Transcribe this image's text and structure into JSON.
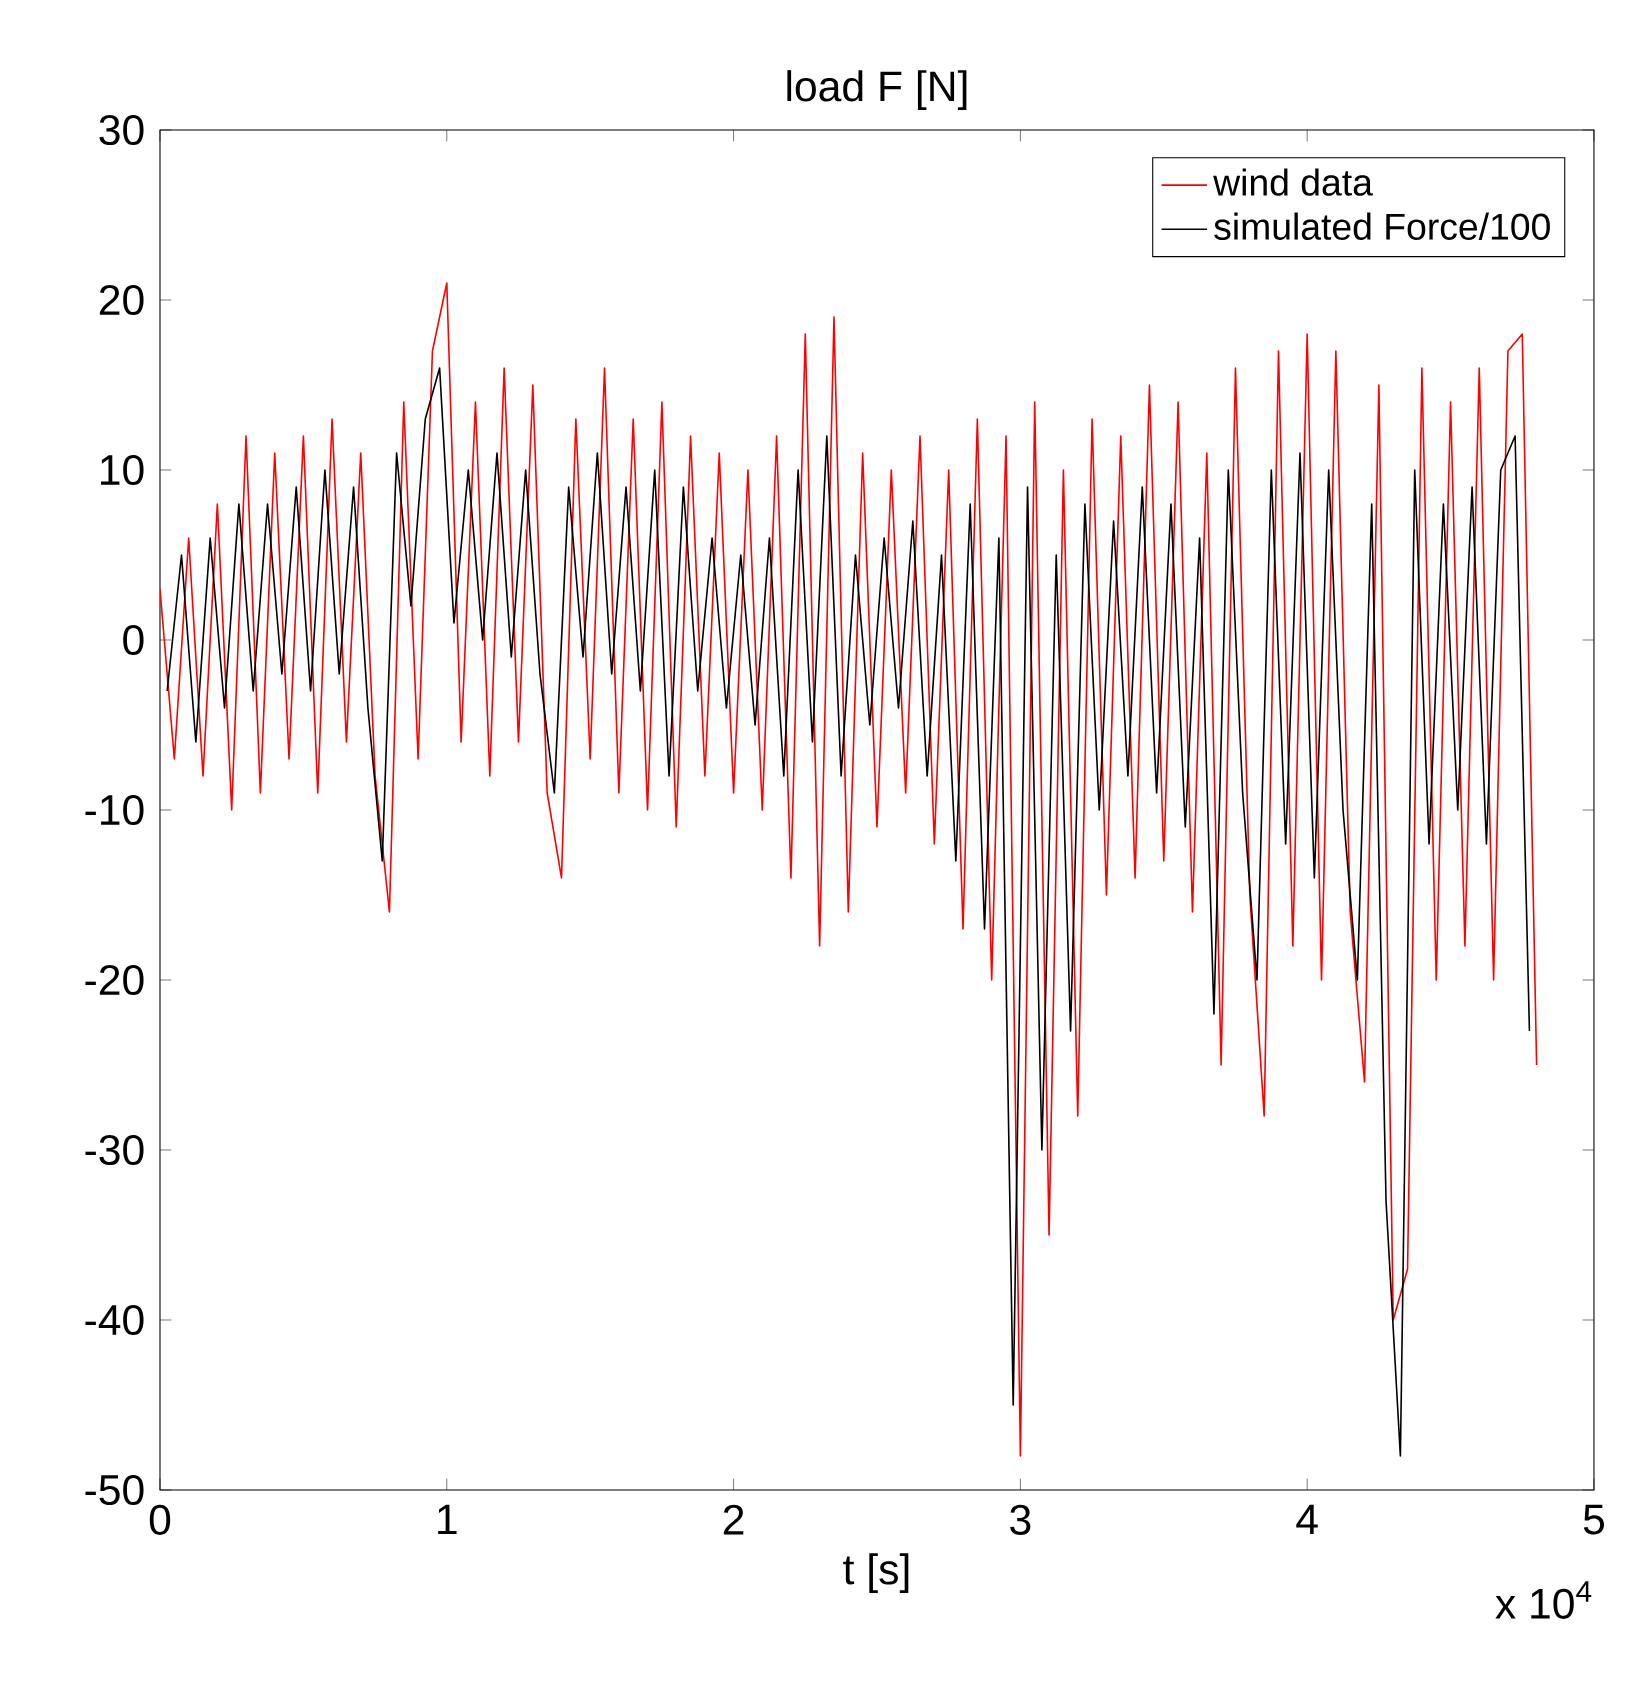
{
  "chart_data": {
    "type": "line",
    "title": "load F [N]",
    "xlabel": "t [s]",
    "annotations": [
      "x 10$^{4}$"
    ],
    "xlim": [
      0,
      5
    ],
    "ylim": [
      -50,
      30
    ],
    "xticks": [
      0,
      1,
      2,
      3,
      4,
      5
    ],
    "yticks": [
      -50,
      -40,
      -30,
      -20,
      -10,
      0,
      10,
      20,
      30
    ],
    "legend": "top right",
    "series": [
      {
        "name": "wind data",
        "color": "#ff0000",
        "x": [
          0,
          0.05,
          0.1,
          0.15,
          0.2,
          0.25,
          0.3,
          0.35,
          0.4,
          0.45,
          0.5,
          0.55,
          0.6,
          0.65,
          0.7,
          0.75,
          0.8,
          0.85,
          0.9,
          0.95,
          1,
          1.05,
          1.1,
          1.15,
          1.2,
          1.25,
          1.3,
          1.35,
          1.4,
          1.45,
          1.5,
          1.55,
          1.6,
          1.65,
          1.7,
          1.75,
          1.8,
          1.85,
          1.9,
          1.95,
          2,
          2.05,
          2.1,
          2.15,
          2.2,
          2.25,
          2.3,
          2.35,
          2.4,
          2.45,
          2.5,
          2.55,
          2.6,
          2.65,
          2.7,
          2.75,
          2.8,
          2.85,
          2.9,
          2.95,
          3,
          3.05,
          3.1,
          3.15,
          3.2,
          3.25,
          3.3,
          3.35,
          3.4,
          3.45,
          3.5,
          3.55,
          3.6,
          3.65,
          3.7,
          3.75,
          3.8,
          3.85,
          3.9,
          3.95,
          4,
          4.05,
          4.1,
          4.15,
          4.2,
          4.25,
          4.3,
          4.35,
          4.4,
          4.45,
          4.5,
          4.55,
          4.6,
          4.65,
          4.7,
          4.75,
          4.8
        ],
        "values": [
          3,
          -7,
          6,
          -8,
          8,
          -10,
          12,
          -9,
          11,
          -7,
          12,
          -9,
          13,
          -6,
          11,
          -8,
          -16,
          14,
          -7,
          17,
          21,
          -6,
          14,
          -8,
          16,
          -6,
          15,
          -9,
          -14,
          13,
          -7,
          16,
          -9,
          13,
          -10,
          14,
          -11,
          12,
          -8,
          11,
          -9,
          10,
          -10,
          12,
          -14,
          18,
          -18,
          19,
          -16,
          11,
          -11,
          10,
          -9,
          12,
          -12,
          10,
          -17,
          13,
          -20,
          12,
          -48,
          14,
          -35,
          10,
          -28,
          13,
          -15,
          12,
          -14,
          15,
          -13,
          14,
          -16,
          11,
          -25,
          16,
          -15,
          -28,
          17,
          -18,
          18,
          -20,
          17,
          -16,
          -26,
          15,
          -40,
          -37,
          16,
          -20,
          14,
          -18,
          16,
          -20,
          17,
          18,
          -25
        ]
      },
      {
        "name": "simulated Force/100",
        "color": "#000000",
        "x": [
          0.025,
          0.075,
          0.125,
          0.175,
          0.225,
          0.275,
          0.325,
          0.375,
          0.425,
          0.475,
          0.525,
          0.575,
          0.625,
          0.675,
          0.725,
          0.775,
          0.825,
          0.875,
          0.925,
          0.975,
          1.025,
          1.075,
          1.125,
          1.175,
          1.225,
          1.275,
          1.325,
          1.375,
          1.425,
          1.475,
          1.525,
          1.575,
          1.625,
          1.675,
          1.725,
          1.775,
          1.825,
          1.875,
          1.925,
          1.975,
          2.025,
          2.075,
          2.125,
          2.175,
          2.225,
          2.275,
          2.325,
          2.375,
          2.425,
          2.475,
          2.525,
          2.575,
          2.625,
          2.675,
          2.725,
          2.775,
          2.825,
          2.875,
          2.925,
          2.975,
          3.025,
          3.075,
          3.125,
          3.175,
          3.225,
          3.275,
          3.325,
          3.375,
          3.425,
          3.475,
          3.525,
          3.575,
          3.625,
          3.675,
          3.725,
          3.775,
          3.825,
          3.875,
          3.925,
          3.975,
          4.025,
          4.075,
          4.125,
          4.175,
          4.225,
          4.275,
          4.325,
          4.375,
          4.425,
          4.475,
          4.525,
          4.575,
          4.625,
          4.675,
          4.725,
          4.775
        ],
        "values": [
          -3,
          5,
          -6,
          6,
          -4,
          8,
          -3,
          8,
          -2,
          9,
          -3,
          10,
          -2,
          9,
          -4,
          -13,
          11,
          2,
          13,
          16,
          1,
          10,
          0,
          11,
          -1,
          10,
          -2,
          -9,
          9,
          -1,
          11,
          -2,
          9,
          -3,
          10,
          -8,
          9,
          -3,
          6,
          -4,
          5,
          -5,
          6,
          -8,
          10,
          -6,
          12,
          -8,
          5,
          -5,
          6,
          -4,
          7,
          -8,
          5,
          -13,
          8,
          -17,
          6,
          -45,
          9,
          -30,
          5,
          -23,
          8,
          -10,
          7,
          -8,
          9,
          -9,
          8,
          -11,
          6,
          -22,
          10,
          -9,
          -20,
          10,
          -12,
          11,
          -14,
          10,
          -10,
          -20,
          8,
          -33,
          -48,
          10,
          -12,
          8,
          -10,
          9,
          -12,
          10,
          12,
          -23
        ]
      }
    ]
  }
}
